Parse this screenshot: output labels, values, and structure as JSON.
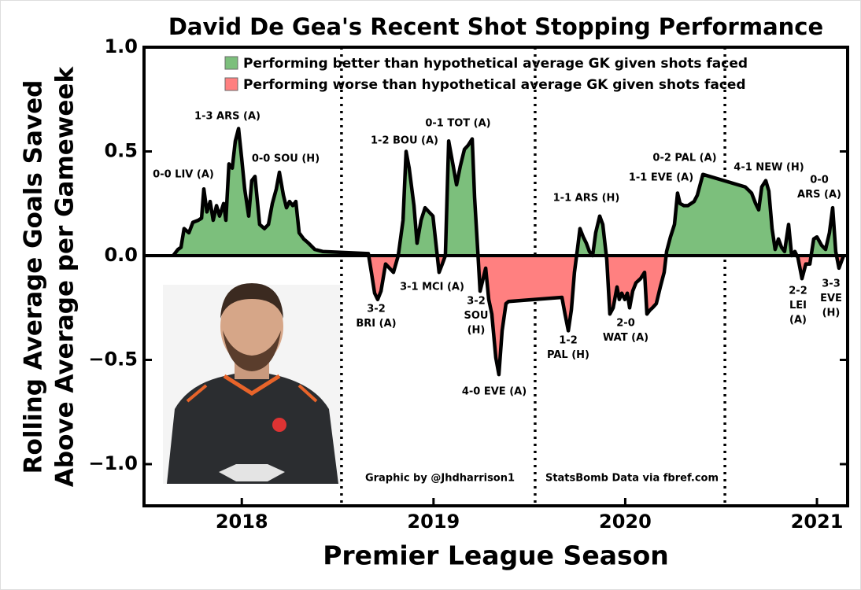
{
  "chart_data": {
    "type": "area",
    "title": "David De Gea's Recent Shot Stopping Performance",
    "x_label": "Premier League Season",
    "y_label": [
      "Rolling Average Goals Saved",
      "Above Average per Gameweek"
    ],
    "xlim": [
      2017.49,
      2021.16
    ],
    "ylim": [
      -1.2,
      1.0
    ],
    "xticks": [
      2018,
      2019,
      2020,
      2021
    ],
    "yticks": [
      {
        "value": 1.0,
        "label": "1.0"
      },
      0.5,
      {
        "value": 0.0,
        "label": "0.0"
      },
      {
        "value": -0.5,
        "label": "−0.5"
      },
      {
        "value": -1.0,
        "label": "−1.0"
      }
    ],
    "season_breaks": [
      2018.52,
      2019.53,
      2020.52
    ],
    "line_color": "#000000",
    "fills": {
      "positive": {
        "label": "Performing better than hypothetical average GK given shots faced",
        "color": "#7cbf7c"
      },
      "negative": {
        "label": "Performing worse than hypothetical average GK given shots faced",
        "color": "#ff8080"
      }
    },
    "legend_position": "upper center",
    "x": [
      2017.642,
      2017.667,
      2017.683,
      2017.699,
      2017.724,
      2017.745,
      2017.773,
      2017.79,
      2017.802,
      2017.818,
      2017.835,
      2017.851,
      2017.868,
      2017.884,
      2017.905,
      2017.917,
      2017.933,
      2017.95,
      2017.966,
      2017.983,
      2017.999,
      2018.015,
      2018.036,
      2018.052,
      2018.069,
      2018.093,
      2018.118,
      2018.139,
      2018.159,
      2018.18,
      2018.196,
      2018.217,
      2018.233,
      2018.249,
      2018.266,
      2018.282,
      2018.299,
      2018.323,
      2018.348,
      2018.381,
      2018.422,
      2018.66,
      2018.676,
      2018.693,
      2018.709,
      2018.726,
      2018.75,
      2018.791,
      2018.816,
      2018.841,
      2018.857,
      2018.873,
      2018.898,
      2018.914,
      2018.935,
      2018.956,
      2018.976,
      2018.997,
      2019.017,
      2019.029,
      2019.046,
      2019.062,
      2019.079,
      2019.099,
      2019.12,
      2019.14,
      2019.161,
      2019.181,
      2019.202,
      2019.214,
      2019.231,
      2019.243,
      2019.259,
      2019.272,
      2019.288,
      2019.304,
      2019.325,
      2019.341,
      2019.358,
      2019.378,
      2019.391,
      2019.67,
      2019.686,
      2019.703,
      2019.719,
      2019.735,
      2019.752,
      2019.764,
      2019.781,
      2019.797,
      2019.813,
      2019.83,
      2019.846,
      2019.867,
      2019.883,
      2019.904,
      2019.92,
      2019.937,
      2019.957,
      2019.969,
      2019.982,
      2019.998,
      2020.011,
      2020.023,
      2020.039,
      2020.056,
      2020.08,
      2020.101,
      2020.113,
      2020.13,
      2020.142,
      2020.162,
      2020.183,
      2020.203,
      2020.216,
      2020.236,
      2020.257,
      2020.273,
      2020.286,
      2020.306,
      2020.327,
      2020.343,
      2020.359,
      2020.376,
      2020.405,
      2020.626,
      2020.659,
      2020.68,
      2020.696,
      2020.712,
      2020.733,
      2020.749,
      2020.766,
      2020.782,
      2020.799,
      2020.815,
      2020.831,
      2020.852,
      2020.868,
      2020.885,
      2020.901,
      2020.922,
      2020.942,
      2020.963,
      2020.983,
      2021.0,
      2021.024,
      2021.045,
      2021.065,
      2021.082,
      2021.098,
      2021.115,
      2021.139
    ],
    "values": [
      0,
      0.03,
      0.04,
      0.13,
      0.11,
      0.16,
      0.17,
      0.18,
      0.32,
      0.21,
      0.26,
      0.17,
      0.24,
      0.19,
      0.25,
      0.17,
      0.44,
      0.42,
      0.55,
      0.61,
      0.47,
      0.32,
      0.19,
      0.36,
      0.38,
      0.15,
      0.13,
      0.15,
      0.25,
      0.32,
      0.4,
      0.29,
      0.23,
      0.26,
      0.24,
      0.26,
      0.11,
      0.08,
      0.06,
      0.03,
      0.02,
      0.01,
      -0.08,
      -0.18,
      -0.21,
      -0.17,
      -0.04,
      -0.08,
      0,
      0.17,
      0.5,
      0.42,
      0.24,
      0.06,
      0.17,
      0.23,
      0.21,
      0.19,
      0.02,
      -0.08,
      -0.04,
      0,
      0.55,
      0.45,
      0.34,
      0.43,
      0.51,
      0.53,
      0.56,
      0.28,
      0.02,
      -0.17,
      -0.11,
      -0.06,
      -0.21,
      -0.28,
      -0.49,
      -0.57,
      -0.36,
      -0.23,
      -0.22,
      -0.2,
      -0.28,
      -0.36,
      -0.26,
      -0.08,
      0.04,
      0.13,
      0.09,
      0.06,
      0.02,
      0,
      0.11,
      0.19,
      0.15,
      -0.02,
      -0.28,
      -0.25,
      -0.15,
      -0.21,
      -0.18,
      -0.21,
      -0.18,
      -0.25,
      -0.17,
      -0.13,
      -0.11,
      -0.08,
      -0.28,
      -0.26,
      -0.25,
      -0.23,
      -0.15,
      -0.08,
      0.02,
      0.09,
      0.15,
      0.3,
      0.25,
      0.24,
      0.24,
      0.25,
      0.26,
      0.29,
      0.39,
      0.33,
      0.3,
      0.25,
      0.22,
      0.33,
      0.36,
      0.31,
      0.13,
      0.03,
      0.08,
      0.04,
      0.02,
      0.15,
      0,
      0.02,
      -0.01,
      -0.11,
      -0.04,
      -0.04,
      0.08,
      0.09,
      0.05,
      0.03,
      0.11,
      0.23,
      0.02,
      -0.06,
      0
    ],
    "annotations": [
      [
        "0-0 LIV (A)"
      ],
      [
        "1-3 ARS (A)"
      ],
      [
        "0-0 SOU (H)"
      ],
      [
        "3-2",
        "BRI (A)"
      ],
      [
        "1-2 BOU (A)"
      ],
      [
        "0-1 TOT (A)"
      ],
      [
        "3-1 MCI (A)"
      ],
      [
        "3-2",
        "SOU",
        "(H)"
      ],
      [
        "4-0 EVE (A)"
      ],
      [
        "1-2",
        "PAL (H)"
      ],
      [
        "1-1 ARS (H)"
      ],
      [
        "2-0",
        "WAT (A)"
      ],
      [
        "0-2 PAL (A)"
      ],
      [
        "1-1 EVE (A)"
      ],
      [
        "4-1 NEW (H)"
      ],
      [
        "0-0",
        "ARS (A)"
      ],
      [
        "2-2",
        "LEI",
        "(A)"
      ],
      [
        "3-3",
        "EVE",
        "(H)"
      ]
    ],
    "credits": [
      "Graphic by @Jhdharrison1",
      "StatsBomb Data via fbref.com"
    ]
  }
}
